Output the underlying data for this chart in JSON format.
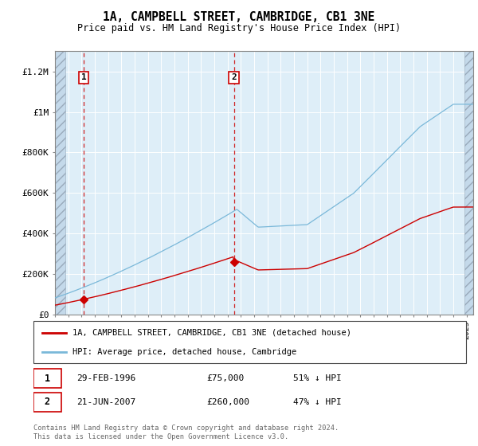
{
  "title": "1A, CAMPBELL STREET, CAMBRIDGE, CB1 3NE",
  "subtitle": "Price paid vs. HM Land Registry's House Price Index (HPI)",
  "ylabel_ticks": [
    "£0",
    "£200K",
    "£400K",
    "£600K",
    "£800K",
    "£1M",
    "£1.2M"
  ],
  "ytick_vals": [
    0,
    200000,
    400000,
    600000,
    800000,
    1000000,
    1200000
  ],
  "ylim": [
    0,
    1300000
  ],
  "xlim_start": 1994.0,
  "xlim_end": 2025.5,
  "sale1_year": 1996.16,
  "sale1_price": 75000,
  "sale2_year": 2007.47,
  "sale2_price": 260000,
  "hpi_color": "#7ab8d9",
  "price_color": "#cc0000",
  "box_color": "#cc0000",
  "bg_color": "#deeef8",
  "legend_line1": "1A, CAMPBELL STREET, CAMBRIDGE, CB1 3NE (detached house)",
  "legend_line2": "HPI: Average price, detached house, Cambridge",
  "footer": "Contains HM Land Registry data © Crown copyright and database right 2024.\nThis data is licensed under the Open Government Licence v3.0."
}
